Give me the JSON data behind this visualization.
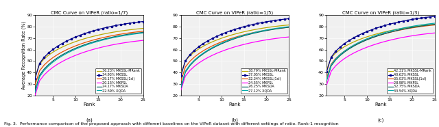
{
  "plots": [
    {
      "title": "CMC Curve on VIPeR (ratio=1/7)",
      "sublabel": "(a)",
      "legend_labels": [
        "36.23% MKSSL-MRank",
        "34.93% MKSSL",
        "29.17% MKSSL(1sl)",
        "20.15% MKFSL",
        "24.17% MKSDA",
        "22.59% XQDA"
      ],
      "rank1_values": [
        36.23,
        34.93,
        29.17,
        20.15,
        24.17,
        22.59
      ],
      "rank25_values": [
        78.5,
        84.5,
        76.0,
        68.0,
        75.0,
        74.5
      ],
      "ylim": [
        20,
        90
      ]
    },
    {
      "title": "CMC Curve on VIPeR (ratio=1/5)",
      "sublabel": "(b)",
      "legend_labels": [
        "38.79% MKSSL-MRank",
        "37.05% MKSSL",
        "32.34% MKSSL(1sl)",
        "24.55% MKFSL",
        "26.25% MKSDA",
        "27.12% XQDA"
      ],
      "rank1_values": [
        38.79,
        37.05,
        32.34,
        24.55,
        26.25,
        27.12
      ],
      "rank25_values": [
        81.5,
        87.0,
        79.5,
        71.0,
        79.5,
        80.0
      ],
      "ylim": [
        20,
        90
      ]
    },
    {
      "title": "CMC Curve on VIPeR (ratio=1/3)",
      "sublabel": "(c)",
      "legend_labels": [
        "42.31% MKSSL-MRank",
        "40.63% MKSSL",
        "35.03% MKSSL(1sl)",
        "28.98% MKFSL",
        "32.75% MKSDA",
        "33.54% XQDA"
      ],
      "rank1_values": [
        42.31,
        40.63,
        35.03,
        28.98,
        32.75,
        33.54
      ],
      "rank25_values": [
        82.0,
        89.0,
        81.5,
        74.5,
        82.0,
        83.0
      ],
      "ylim": [
        20,
        90
      ]
    }
  ],
  "colors": [
    "#b8a800",
    "#00008b",
    "#e85000",
    "#ff00ff",
    "#006060",
    "#00aaaa"
  ],
  "xlabel": "Rank",
  "ylabel": "Average Recognition Rate (%)",
  "ranks": [
    1,
    2,
    3,
    4,
    5,
    6,
    7,
    8,
    9,
    10,
    11,
    12,
    13,
    14,
    15,
    16,
    17,
    18,
    19,
    20,
    21,
    22,
    23,
    24,
    25
  ],
  "caption": "Fig. 3.  Performance comparison of the proposed approach with different baselines on the VIPeR dataset with different settings of ratio. Rank-1 recognition",
  "bg_color": "#f0f0f0"
}
